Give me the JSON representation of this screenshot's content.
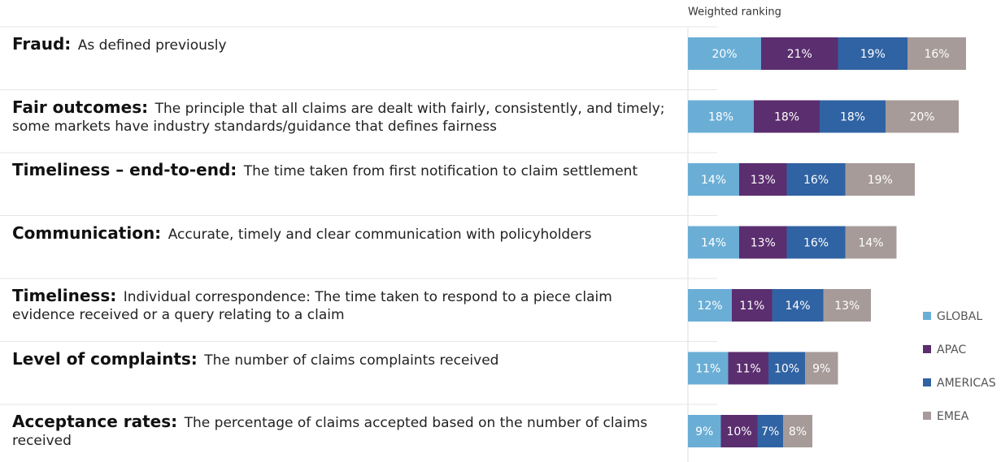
{
  "chart_data": {
    "type": "bar",
    "orientation": "horizontal",
    "stacked": true,
    "header": "Weighted ranking",
    "categories": [
      "Fraud:",
      "Fair outcomes:",
      "Timeliness – end-to-end:",
      "Communication:",
      "Timeliness:",
      "Level of complaints:",
      "Acceptance rates:"
    ],
    "descriptions": [
      "As defined previously",
      "The principle that all claims are dealt with fairly, consistently, and timely; some markets have industry standards/guidance that defines fairness",
      "The time taken from first notification to claim settlement",
      "Accurate, timely and clear communication with policyholders",
      "Individual correspondence: The time taken to respond to a piece claim evidence received or a query relating to a claim",
      "The number of claims complaints received",
      "The percentage of claims accepted based on the number of claims received"
    ],
    "series": [
      {
        "name": "GLOBAL",
        "color": "#6aaed6",
        "values": [
          20,
          18,
          14,
          14,
          12,
          11,
          9
        ],
        "value_labels": [
          "20%",
          "18%",
          "14%",
          "14%",
          "12%",
          "11%",
          "9%"
        ]
      },
      {
        "name": "APAC",
        "color": "#5b2e6f",
        "values": [
          21,
          18,
          13,
          13,
          11,
          11,
          10
        ],
        "value_labels": [
          "21%",
          "18%",
          "13%",
          "13%",
          "11%",
          "11%",
          "10%"
        ]
      },
      {
        "name": "AMERICAS",
        "color": "#3063a3",
        "values": [
          19,
          18,
          16,
          16,
          14,
          10,
          7
        ],
        "value_labels": [
          "19%",
          "18%",
          "16%",
          "16%",
          "14%",
          "10%",
          "7%"
        ]
      },
      {
        "name": "EMEA",
        "color": "#a69b99",
        "values": [
          16,
          20,
          19,
          14,
          13,
          9,
          8
        ],
        "value_labels": [
          "16%",
          "20%",
          "19%",
          "14%",
          "13%",
          "9%",
          "8%"
        ]
      }
    ],
    "legend": "right"
  }
}
